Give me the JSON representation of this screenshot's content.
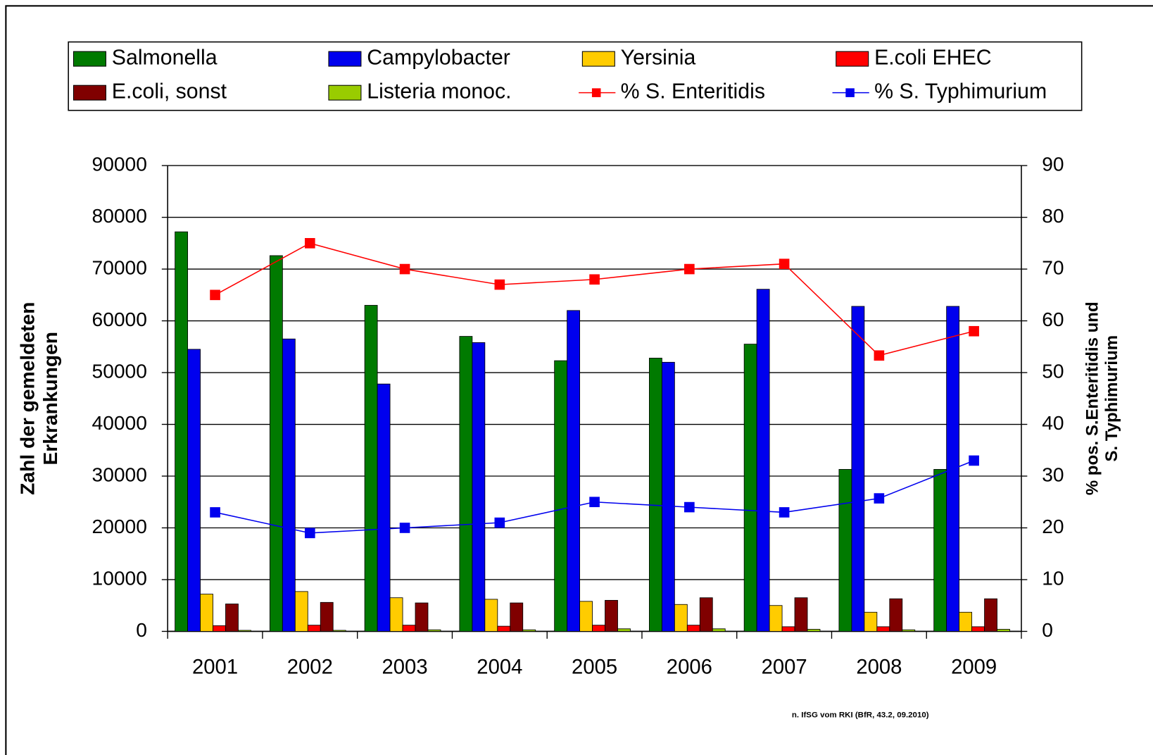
{
  "chart_data": {
    "type": "bar",
    "categories": [
      "2001",
      "2002",
      "2003",
      "2004",
      "2005",
      "2006",
      "2007",
      "2008",
      "2009"
    ],
    "series": [
      {
        "name": "Salmonella",
        "color": "#007a00",
        "values": [
          77200,
          72600,
          63000,
          57000,
          52300,
          52800,
          55500,
          31300,
          31300
        ]
      },
      {
        "name": "Campylobacter",
        "color": "#0000ee",
        "values": [
          54500,
          56500,
          47800,
          55800,
          62000,
          52000,
          66100,
          62800,
          62800
        ]
      },
      {
        "name": "Yersinia",
        "color": "#ffcc00",
        "values": [
          7200,
          7700,
          6500,
          6200,
          5800,
          5200,
          5000,
          3700,
          3700
        ]
      },
      {
        "name": "E.coli EHEC",
        "color": "#ff0000",
        "values": [
          1100,
          1200,
          1200,
          1000,
          1200,
          1200,
          900,
          900,
          900
        ]
      },
      {
        "name": "E.coli, sonst",
        "color": "#800000",
        "values": [
          5300,
          5600,
          5500,
          5500,
          6000,
          6500,
          6500,
          6300,
          6300
        ]
      },
      {
        "name": "Listeria monoc.",
        "color": "#99cc00",
        "values": [
          200,
          200,
          300,
          300,
          500,
          500,
          400,
          300,
          400
        ]
      },
      {
        "name": "% S. Enteritidis",
        "color": "#ff0000",
        "type": "line",
        "axis": "y2",
        "values": [
          65,
          75,
          70,
          67,
          68,
          70,
          71,
          53.3,
          58
        ]
      },
      {
        "name": "% S. Typhimurium",
        "color": "#0000ee",
        "type": "line",
        "axis": "y2",
        "values": [
          23,
          19,
          20,
          21,
          25,
          24,
          23,
          25.7,
          33
        ]
      }
    ],
    "ylabel": [
      "Zahl der gemeldeten",
      "Erkrankungen"
    ],
    "y2label": [
      "% pos. S.Enteritidis und",
      "S. Typhimurium"
    ],
    "ylim": [
      0,
      90000
    ],
    "yticks": [
      0,
      10000,
      20000,
      30000,
      40000,
      50000,
      60000,
      70000,
      80000,
      90000
    ],
    "y2lim": [
      0,
      90
    ],
    "y2ticks": [
      0,
      10,
      20,
      30,
      40,
      50,
      60,
      70,
      80,
      90
    ],
    "grid": true,
    "legend": "top",
    "source": "n. IfSG vom RKI (BfR, 43.2, 09.2010)"
  }
}
